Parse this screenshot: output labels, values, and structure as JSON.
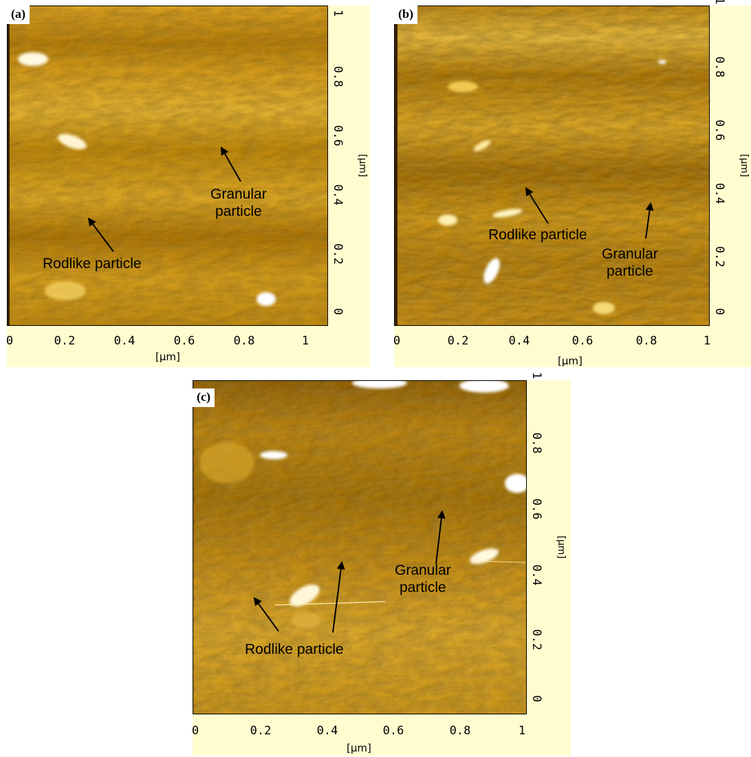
{
  "panels": {
    "a": {
      "label": "(a)",
      "x_ticks": [
        "0",
        "0.2",
        "0.4",
        "0.6",
        "0.8",
        "1"
      ],
      "y_ticks": [
        "0",
        "0.2",
        "0.4",
        "0.6",
        "0.8",
        "1"
      ],
      "x_unit": "[µm]",
      "y_unit": "[µm]",
      "annotations": {
        "granular_line1": "Granular",
        "granular_line2": "particle",
        "rodlike": "Rodlike particle"
      }
    },
    "b": {
      "label": "(b)",
      "x_ticks": [
        "0",
        "0.2",
        "0.4",
        "0.6",
        "0.8",
        "1"
      ],
      "y_ticks": [
        "0",
        "0.2",
        "0.4",
        "0.6",
        "0.8",
        "1"
      ],
      "x_unit": "[µm]",
      "y_unit": "[µm]",
      "annotations": {
        "rodlike": "Rodlike particle",
        "granular_line1": "Granular",
        "granular_line2": "particle"
      }
    },
    "c": {
      "label": "(c)",
      "x_ticks": [
        "0",
        "0.2",
        "0.4",
        "0.6",
        "0.8",
        "1"
      ],
      "y_ticks": [
        "0",
        "0.2",
        "0.4",
        "0.6",
        "0.8",
        "1"
      ],
      "x_unit": "[µm]",
      "y_unit": "[µm]",
      "annotations": {
        "granular_line1": "Granular",
        "granular_line2": "particle",
        "rodlike": "Rodlike particle"
      }
    }
  },
  "colors": {
    "panel_background": "#fffdd0",
    "afm_dark": "#7a5200",
    "afm_mid": "#c08a10",
    "afm_light": "#f0c840",
    "afm_highlight": "#ffffff"
  }
}
